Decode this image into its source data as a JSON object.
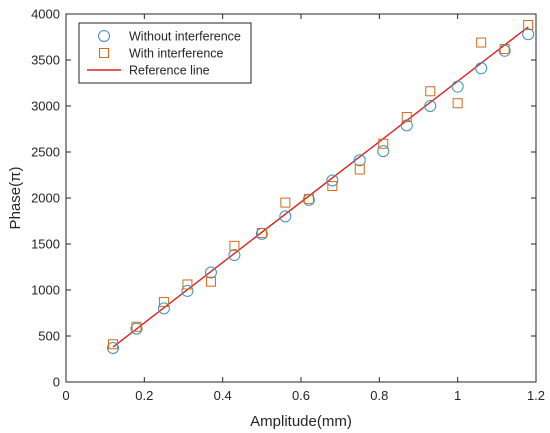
{
  "chart_data": {
    "type": "scatter",
    "title": "",
    "xlabel": "Amplitude(mm)",
    "ylabel": "Phase(π)",
    "xlim": [
      0,
      1.2
    ],
    "ylim": [
      0,
      4000
    ],
    "xticks": [
      0,
      0.2,
      0.4,
      0.6,
      0.8,
      1,
      1.2
    ],
    "yticks": [
      0,
      500,
      1000,
      1500,
      2000,
      2500,
      3000,
      3500,
      4000
    ],
    "grid": false,
    "legend_position": "top-left",
    "series": [
      {
        "name": "Without interference",
        "marker": "circle",
        "color": "#3b8fc4",
        "x": [
          0.12,
          0.18,
          0.25,
          0.31,
          0.37,
          0.43,
          0.5,
          0.56,
          0.62,
          0.68,
          0.75,
          0.81,
          0.87,
          0.93,
          1.0,
          1.06,
          1.12,
          1.18
        ],
        "y": [
          370,
          580,
          800,
          990,
          1190,
          1380,
          1610,
          1800,
          1980,
          2190,
          2410,
          2510,
          2790,
          3000,
          3210,
          3410,
          3600,
          3780
        ]
      },
      {
        "name": "With interference",
        "marker": "square",
        "color": "#d2691e",
        "x": [
          0.12,
          0.18,
          0.25,
          0.31,
          0.37,
          0.43,
          0.5,
          0.56,
          0.62,
          0.68,
          0.75,
          0.81,
          0.87,
          0.93,
          1.0,
          1.06,
          1.12,
          1.18
        ],
        "y": [
          410,
          600,
          870,
          1060,
          1090,
          1480,
          1620,
          1950,
          1990,
          2130,
          2310,
          2590,
          2880,
          3160,
          3030,
          3690,
          3620,
          3880
        ]
      },
      {
        "name": "Reference line",
        "marker": "line",
        "color": "#e02020",
        "x": [
          0.12,
          1.18
        ],
        "y": [
          380,
          3860
        ]
      }
    ]
  }
}
